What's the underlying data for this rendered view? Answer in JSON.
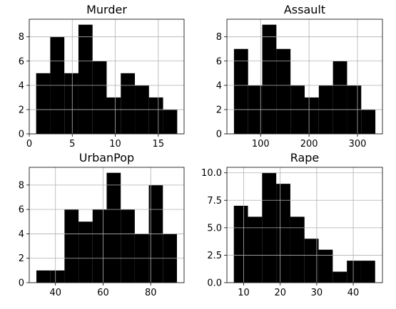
{
  "colors": {
    "bar": "#000000",
    "grid": "#b0b0b0",
    "background": "#ffffff"
  },
  "chart_data": [
    {
      "type": "bar",
      "title": "Murder",
      "grid": true,
      "bin_edges": [
        0.8,
        2.44,
        4.08,
        5.72,
        7.36,
        9.0,
        10.64,
        12.28,
        13.92,
        15.56,
        17.2
      ],
      "values": [
        5,
        8,
        5,
        9,
        6,
        3,
        5,
        4,
        3,
        2
      ],
      "xlim": [
        0,
        18
      ],
      "ylim": [
        0,
        9.45
      ],
      "xticks": [
        0,
        5,
        10,
        15
      ],
      "xtick_labels": [
        "0",
        "5",
        "10",
        "15"
      ],
      "yticks": [
        0,
        2,
        4,
        6,
        8
      ],
      "ytick_labels": [
        "0",
        "2",
        "4",
        "6",
        "8"
      ]
    },
    {
      "type": "bar",
      "title": "Assault",
      "grid": true,
      "bin_edges": [
        45,
        74.2,
        103.4,
        132.6,
        161.8,
        191.0,
        220.2,
        249.4,
        278.6,
        307.8,
        337
      ],
      "values": [
        7,
        4,
        9,
        7,
        4,
        3,
        4,
        6,
        4,
        2
      ],
      "xlim": [
        30.4,
        351.6
      ],
      "ylim": [
        0,
        9.45
      ],
      "xticks": [
        100,
        200,
        300
      ],
      "xtick_labels": [
        "100",
        "200",
        "300"
      ],
      "yticks": [
        0,
        2,
        4,
        6,
        8
      ],
      "ytick_labels": [
        "0",
        "2",
        "4",
        "6",
        "8"
      ]
    },
    {
      "type": "bar",
      "title": "UrbanPop",
      "grid": true,
      "bin_edges": [
        32,
        37.9,
        43.8,
        49.7,
        55.6,
        61.5,
        67.4,
        73.3,
        79.2,
        85.1,
        91
      ],
      "values": [
        1,
        1,
        6,
        5,
        6,
        9,
        6,
        4,
        8,
        4
      ],
      "xlim": [
        29,
        94
      ],
      "ylim": [
        0,
        9.45
      ],
      "xticks": [
        40,
        60,
        80
      ],
      "xtick_labels": [
        "40",
        "60",
        "80"
      ],
      "yticks": [
        0,
        2,
        4,
        6,
        8
      ],
      "ytick_labels": [
        "0",
        "2",
        "4",
        "6",
        "8"
      ]
    },
    {
      "type": "bar",
      "title": "Rape",
      "grid": true,
      "bin_edges": [
        7.3,
        11.17,
        15.04,
        18.91,
        22.78,
        26.65,
        30.52,
        34.39,
        38.26,
        42.13,
        46.0
      ],
      "values": [
        7,
        6,
        10,
        9,
        6,
        4,
        3,
        1,
        2,
        2
      ],
      "xlim": [
        5.4,
        48
      ],
      "ylim": [
        0,
        10.5
      ],
      "xticks": [
        10,
        20,
        30,
        40
      ],
      "xtick_labels": [
        "10",
        "20",
        "30",
        "40"
      ],
      "yticks": [
        0,
        2.5,
        5,
        7.5,
        10
      ],
      "ytick_labels": [
        "0.0",
        "2.5",
        "5.0",
        "7.5",
        "10.0"
      ]
    }
  ]
}
